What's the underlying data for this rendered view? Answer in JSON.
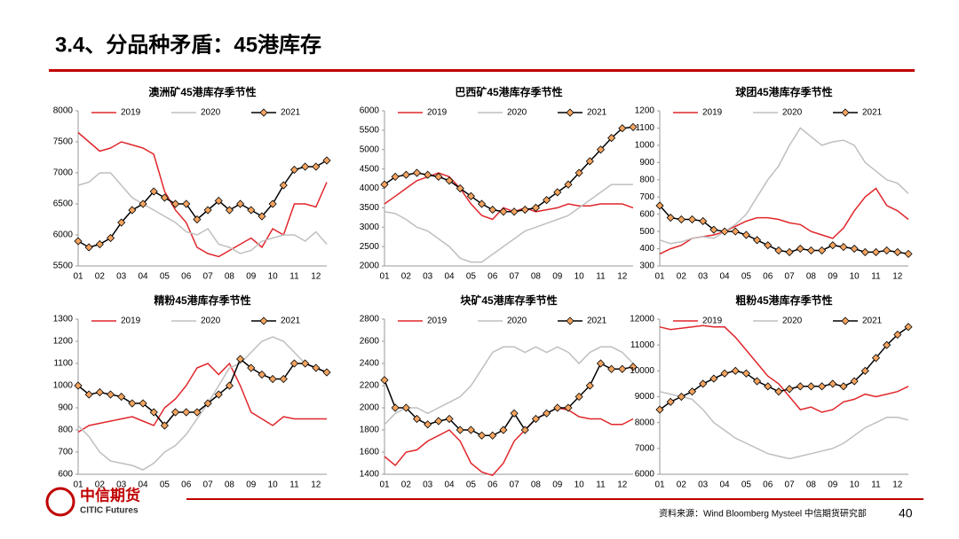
{
  "title": "3.4、分品种矛盾：45港库存",
  "source": "资料来源：Wind Bloomberg Mysteel 中信期货研究部",
  "page_number": "40",
  "logo": {
    "name": "中信期货",
    "english": "CITIC Futures"
  },
  "chart_data": [
    {
      "type": "line",
      "title": "澳洲矿45港库存季节性",
      "categories": [
        "01",
        null,
        "02",
        null,
        "03",
        null,
        "04",
        null,
        "05",
        null,
        "06",
        null,
        "07",
        null,
        "08",
        null,
        "09",
        null,
        "10",
        null,
        "11",
        null,
        "12",
        null
      ],
      "ylim": [
        5500,
        8000
      ],
      "yticks": [
        5500,
        6000,
        6500,
        7000,
        7500,
        8000
      ],
      "series": [
        {
          "name": "2019",
          "color": "#e0262b",
          "values": [
            7650,
            7500,
            7350,
            7400,
            7500,
            7450,
            7400,
            7300,
            6700,
            6400,
            6200,
            5800,
            5700,
            5650,
            5750,
            5850,
            5950,
            5800,
            6100,
            6000,
            6500,
            6500,
            6450,
            6850
          ]
        },
        {
          "name": "2020",
          "color": "#bfbfbf",
          "values": [
            6800,
            6850,
            7000,
            7000,
            6800,
            6600,
            6500,
            6400,
            6300,
            6200,
            6050,
            6000,
            6100,
            5850,
            5800,
            5700,
            5750,
            5900,
            5950,
            6000,
            6000,
            5900,
            6050,
            5850
          ]
        },
        {
          "name": "2021",
          "color": "#000000",
          "marker_color": "#f4a460",
          "values": [
            5900,
            5800,
            5850,
            5950,
            6200,
            6400,
            6500,
            6700,
            6600,
            6500,
            6500,
            6250,
            6400,
            6550,
            6400,
            6500,
            6400,
            6300,
            6500,
            6800,
            7050,
            7100,
            7100,
            7200
          ]
        }
      ]
    },
    {
      "type": "line",
      "title": "巴西矿45港库存季节性",
      "categories": [
        "01",
        null,
        "02",
        null,
        "03",
        null,
        "04",
        null,
        "05",
        null,
        "06",
        null,
        "07",
        null,
        "08",
        null,
        "09",
        null,
        "10",
        null,
        "11",
        null,
        "12",
        null
      ],
      "ylim": [
        2000,
        6000
      ],
      "yticks": [
        2000,
        2500,
        3000,
        3500,
        4000,
        4500,
        5000,
        5500,
        6000
      ],
      "series": [
        {
          "name": "2019",
          "color": "#e0262b",
          "values": [
            3600,
            3800,
            4000,
            4200,
            4300,
            4400,
            4300,
            4000,
            3600,
            3300,
            3200,
            3500,
            3400,
            3500,
            3400,
            3450,
            3500,
            3600,
            3550,
            3550,
            3600,
            3600,
            3600,
            3500
          ]
        },
        {
          "name": "2020",
          "color": "#bfbfbf",
          "values": [
            3400,
            3350,
            3200,
            3000,
            2900,
            2700,
            2500,
            2200,
            2100,
            2100,
            2300,
            2500,
            2700,
            2900,
            3000,
            3100,
            3200,
            3300,
            3500,
            3700,
            3900,
            4100,
            4100,
            4100
          ]
        },
        {
          "name": "2021",
          "color": "#000000",
          "marker_color": "#f4a460",
          "values": [
            4100,
            4300,
            4350,
            4400,
            4350,
            4300,
            4200,
            4000,
            3800,
            3600,
            3450,
            3400,
            3400,
            3450,
            3500,
            3700,
            3900,
            4100,
            4400,
            4700,
            5000,
            5300,
            5550,
            5580
          ]
        }
      ]
    },
    {
      "type": "line",
      "title": "球团45港库存季节性",
      "categories": [
        "01",
        null,
        "02",
        null,
        "03",
        null,
        "04",
        null,
        "05",
        null,
        "06",
        null,
        "07",
        null,
        "08",
        null,
        "09",
        null,
        "10",
        null,
        "11",
        null,
        "12",
        null
      ],
      "ylim": [
        300,
        1200
      ],
      "yticks": [
        300,
        400,
        500,
        600,
        700,
        800,
        900,
        1000,
        1100,
        1200
      ],
      "series": [
        {
          "name": "2019",
          "color": "#e0262b",
          "values": [
            370,
            400,
            420,
            460,
            470,
            480,
            500,
            530,
            560,
            580,
            580,
            570,
            550,
            540,
            500,
            480,
            460,
            520,
            620,
            700,
            750,
            650,
            620,
            570
          ]
        },
        {
          "name": "2020",
          "color": "#bfbfbf",
          "values": [
            450,
            430,
            440,
            460,
            470,
            460,
            500,
            540,
            600,
            700,
            800,
            880,
            1000,
            1100,
            1050,
            1000,
            1020,
            1030,
            1000,
            900,
            850,
            800,
            780,
            720
          ]
        },
        {
          "name": "2021",
          "color": "#000000",
          "marker_color": "#f4a460",
          "values": [
            650,
            580,
            570,
            570,
            560,
            510,
            500,
            500,
            480,
            450,
            420,
            390,
            380,
            400,
            390,
            390,
            420,
            410,
            400,
            380,
            380,
            390,
            380,
            370
          ]
        }
      ]
    },
    {
      "type": "line",
      "title": "精粉45港库存季节性",
      "categories": [
        "01",
        null,
        "02",
        null,
        "03",
        null,
        "04",
        null,
        "05",
        null,
        "06",
        null,
        "07",
        null,
        "08",
        null,
        "09",
        null,
        "10",
        null,
        "11",
        null,
        "12",
        null
      ],
      "ylim": [
        600,
        1300
      ],
      "yticks": [
        600,
        700,
        800,
        900,
        1000,
        1100,
        1200,
        1300
      ],
      "series": [
        {
          "name": "2019",
          "color": "#e0262b",
          "values": [
            790,
            820,
            830,
            840,
            850,
            860,
            840,
            820,
            900,
            940,
            1000,
            1080,
            1100,
            1050,
            1100,
            1000,
            880,
            850,
            820,
            860,
            850,
            850,
            850,
            850
          ]
        },
        {
          "name": "2020",
          "color": "#bfbfbf",
          "values": [
            820,
            770,
            700,
            660,
            650,
            640,
            620,
            650,
            700,
            730,
            780,
            850,
            920,
            1000,
            1080,
            1100,
            1150,
            1200,
            1220,
            1200,
            1150,
            1100,
            1080,
            1060
          ]
        },
        {
          "name": "2021",
          "color": "#000000",
          "marker_color": "#f4a460",
          "values": [
            1000,
            960,
            970,
            960,
            950,
            920,
            920,
            880,
            820,
            880,
            880,
            880,
            920,
            960,
            1000,
            1120,
            1080,
            1050,
            1030,
            1030,
            1100,
            1100,
            1080,
            1060
          ]
        }
      ]
    },
    {
      "type": "line",
      "title": "块矿45港库存季节性",
      "categories": [
        "01",
        null,
        "02",
        null,
        "03",
        null,
        "04",
        null,
        "05",
        null,
        "06",
        null,
        "07",
        null,
        "08",
        null,
        "09",
        null,
        "10",
        null,
        "11",
        null,
        "12",
        null
      ],
      "ylim": [
        1400,
        2800
      ],
      "yticks": [
        1400,
        1600,
        1800,
        2000,
        2200,
        2400,
        2600,
        2800
      ],
      "series": [
        {
          "name": "2019",
          "color": "#e0262b",
          "values": [
            1560,
            1480,
            1600,
            1620,
            1700,
            1750,
            1800,
            1700,
            1500,
            1420,
            1390,
            1500,
            1700,
            1800,
            1900,
            1950,
            2000,
            1980,
            1920,
            1900,
            1900,
            1850,
            1850,
            1900
          ]
        },
        {
          "name": "2020",
          "color": "#bfbfbf",
          "values": [
            1850,
            1950,
            2000,
            2000,
            1950,
            2000,
            2050,
            2100,
            2200,
            2350,
            2500,
            2550,
            2550,
            2500,
            2550,
            2500,
            2550,
            2500,
            2400,
            2500,
            2550,
            2550,
            2500,
            2400
          ]
        },
        {
          "name": "2021",
          "color": "#000000",
          "marker_color": "#f4a460",
          "values": [
            2250,
            2000,
            2000,
            1900,
            1850,
            1880,
            1900,
            1800,
            1800,
            1750,
            1750,
            1800,
            1950,
            1800,
            1900,
            1950,
            2000,
            2000,
            2100,
            2200,
            2400,
            2350,
            2350,
            2370
          ]
        }
      ]
    },
    {
      "type": "line",
      "title": "粗粉45港库存季节性",
      "categories": [
        "01",
        null,
        "02",
        null,
        "03",
        null,
        "04",
        null,
        "05",
        null,
        "06",
        null,
        "07",
        null,
        "08",
        null,
        "09",
        null,
        "10",
        null,
        "11",
        null,
        "12",
        null
      ],
      "ylim": [
        6000,
        12000
      ],
      "yticks": [
        6000,
        7000,
        8000,
        9000,
        10000,
        11000,
        12000
      ],
      "series": [
        {
          "name": "2019",
          "color": "#e0262b",
          "values": [
            11700,
            11600,
            11650,
            11700,
            11750,
            11700,
            11700,
            11300,
            10800,
            10300,
            9800,
            9500,
            9000,
            8500,
            8600,
            8400,
            8500,
            8800,
            8900,
            9100,
            9000,
            9100,
            9200,
            9400
          ]
        },
        {
          "name": "2020",
          "color": "#bfbfbf",
          "values": [
            9200,
            9100,
            9000,
            8900,
            8500,
            8000,
            7700,
            7400,
            7200,
            7000,
            6800,
            6700,
            6600,
            6700,
            6800,
            6900,
            7000,
            7200,
            7500,
            7800,
            8000,
            8200,
            8200,
            8100
          ]
        },
        {
          "name": "2021",
          "color": "#000000",
          "marker_color": "#f4a460",
          "values": [
            8500,
            8800,
            9000,
            9200,
            9500,
            9700,
            9900,
            10000,
            9900,
            9600,
            9400,
            9200,
            9300,
            9400,
            9400,
            9400,
            9500,
            9400,
            9600,
            10000,
            10500,
            11000,
            11400,
            11700
          ]
        }
      ]
    }
  ]
}
